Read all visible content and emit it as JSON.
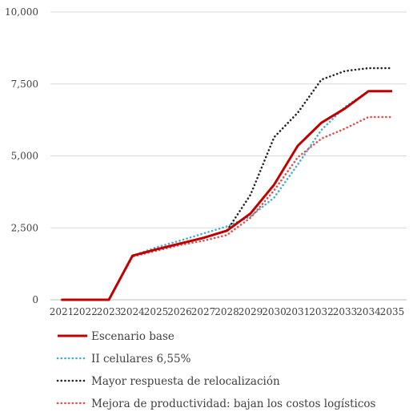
{
  "chart_data": {
    "type": "line",
    "title": "",
    "xlabel": "",
    "ylabel": "",
    "x": [
      "2021",
      "2022",
      "2023",
      "2024",
      "2025",
      "2026",
      "2027",
      "2028",
      "2029",
      "2030",
      "2031",
      "2032",
      "2033",
      "2034",
      "2035"
    ],
    "ylim": [
      0,
      10000
    ],
    "y_ticks": [
      0,
      2500,
      5000,
      7500,
      10000
    ],
    "y_tick_labels": [
      "0",
      "2,500",
      "5,000",
      "7,500",
      "10,000"
    ],
    "grid": "horizontal",
    "legend_position": "bottom",
    "series": [
      {
        "name": "Escenario base",
        "color": "#c00000",
        "style": "solid",
        "values": [
          0,
          0,
          0,
          1530,
          1750,
          1950,
          2150,
          2400,
          3000,
          4000,
          5350,
          6150,
          6650,
          7250,
          7250
        ]
      },
      {
        "name": "II celulares 6,55%",
        "color": "#4bacc6",
        "style": "dotted",
        "values": [
          0,
          0,
          0,
          1530,
          1820,
          2050,
          2300,
          2550,
          2900,
          3550,
          4700,
          5900,
          6700,
          7250,
          7250
        ]
      },
      {
        "name": "Mayor respuesta de relocalización",
        "color": "#262626",
        "style": "dotted",
        "values": [
          0,
          0,
          0,
          1530,
          1750,
          1950,
          2150,
          2400,
          3650,
          5650,
          6500,
          7650,
          7950,
          8050,
          8050
        ]
      },
      {
        "name": "Mejora de productividad: bajan los costos logísticos",
        "color": "#e84c4c",
        "style": "dotted",
        "values": [
          0,
          0,
          0,
          1500,
          1700,
          1900,
          2050,
          2250,
          2850,
          3800,
          4950,
          5600,
          5950,
          6350,
          6350
        ]
      }
    ]
  }
}
